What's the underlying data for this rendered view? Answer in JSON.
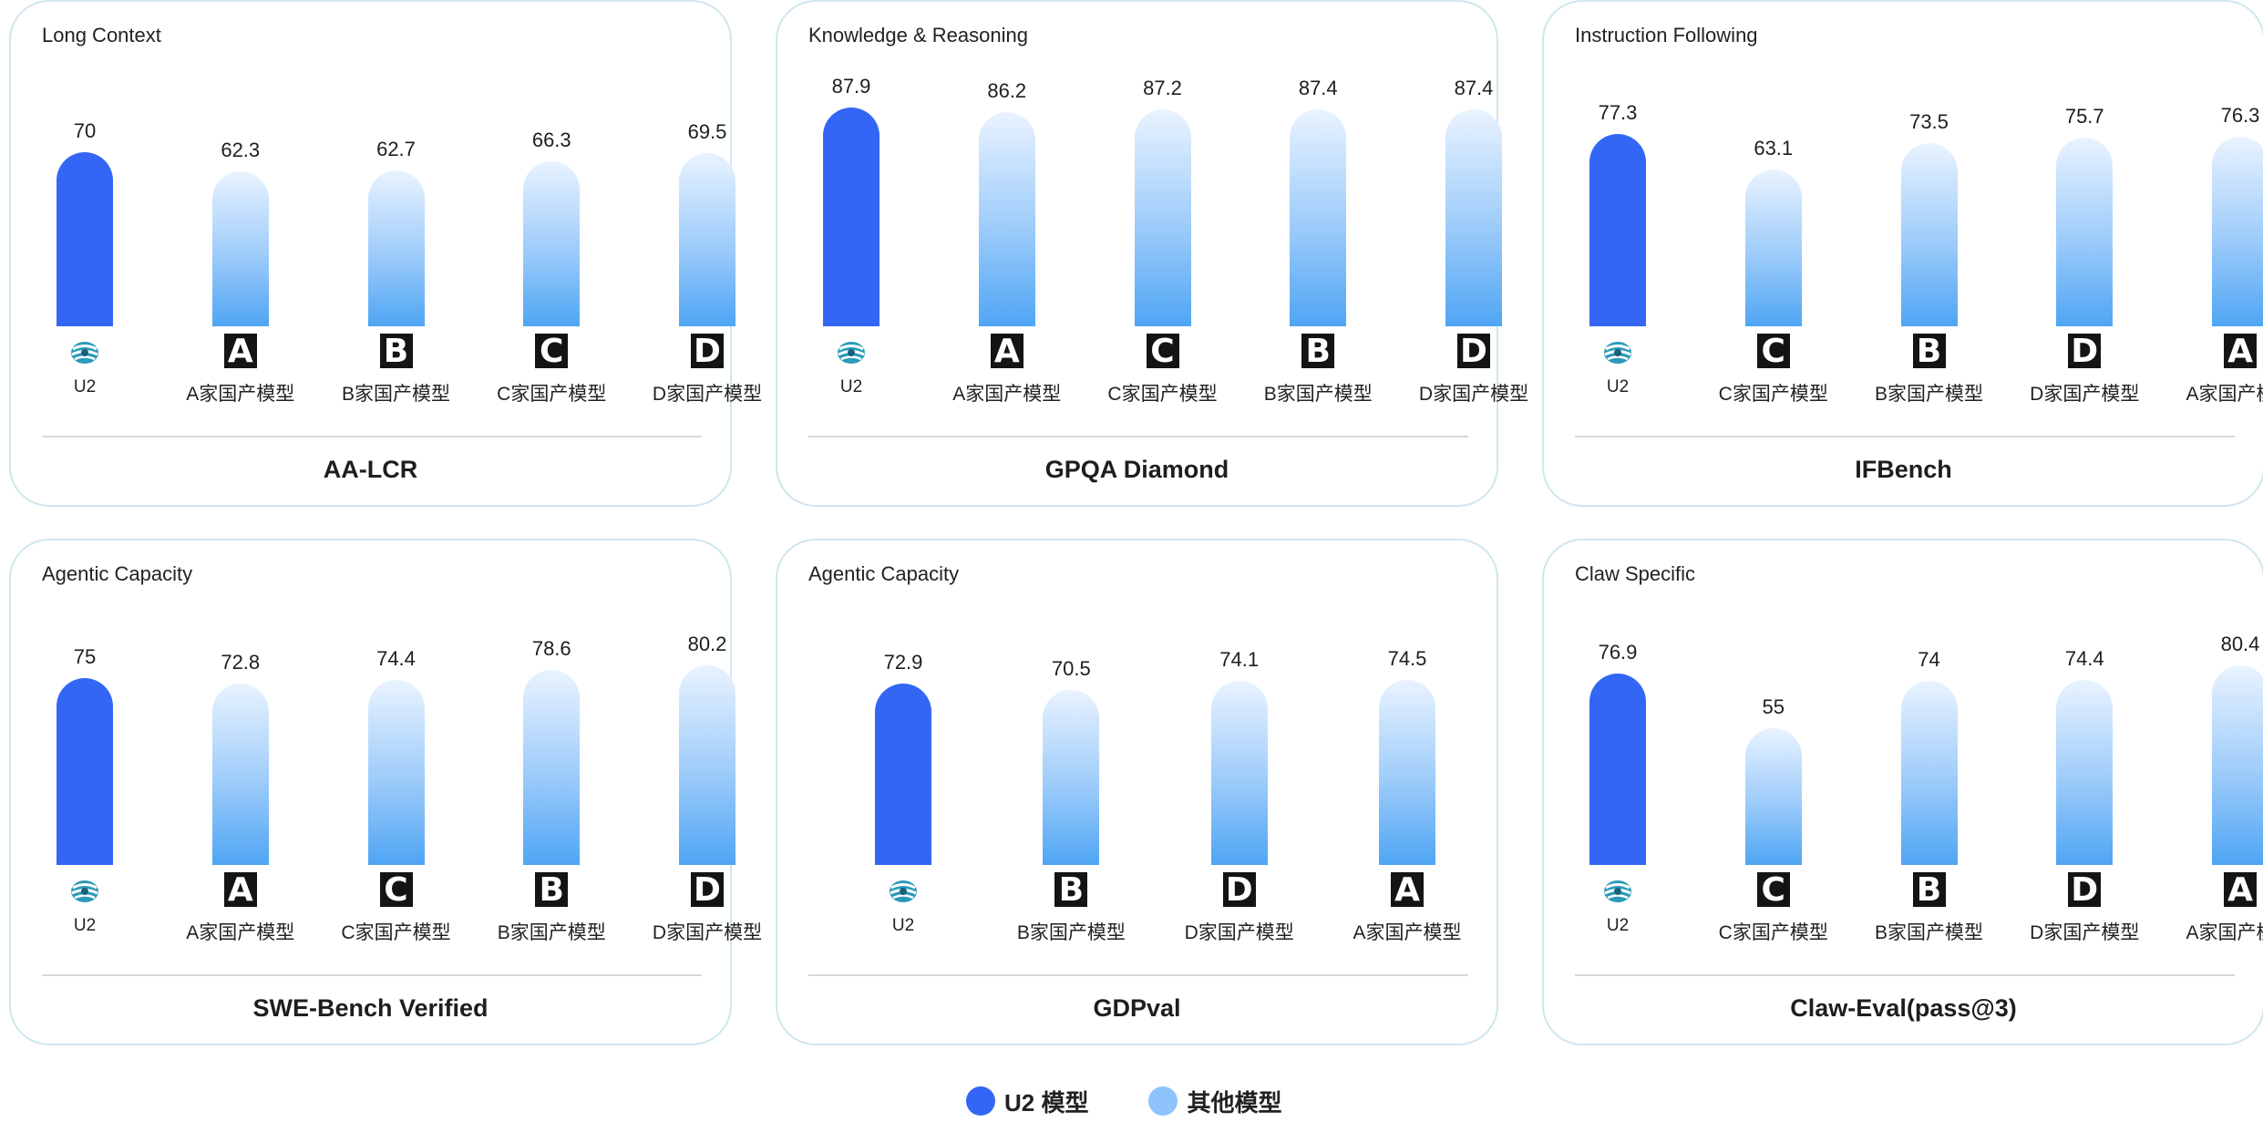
{
  "colors": {
    "u2_bar": "#3366f5",
    "other_bar_top": "#e9f3ff",
    "other_bar_bottom": "#4fa5f4",
    "panel_border": "#cfe6ee"
  },
  "legend": {
    "u2": {
      "label": "U2 模型",
      "color": "#3366f5"
    },
    "other": {
      "label": "其他模型",
      "color": "#8ec3fb"
    }
  },
  "chart_data": [
    {
      "type": "bar",
      "category": "Long Context",
      "title": "AA-LCR",
      "categories": [
        "U2",
        "A家国产模型",
        "B家国产模型",
        "C家国产模型",
        "D家国产模型"
      ],
      "logos": [
        "u2-icon",
        "A",
        "B",
        "C",
        "D"
      ],
      "values": [
        70,
        62.3,
        62.7,
        66.3,
        69.5
      ],
      "highlight_index": 0
    },
    {
      "type": "bar",
      "category": "Knowledge & Reasoning",
      "title": "GPQA Diamond",
      "categories": [
        "U2",
        "A家国产模型",
        "C家国产模型",
        "B家国产模型",
        "D家国产模型"
      ],
      "logos": [
        "u2-icon",
        "A",
        "C",
        "B",
        "D"
      ],
      "values": [
        87.9,
        86.2,
        87.2,
        87.4,
        87.4
      ],
      "highlight_index": 0
    },
    {
      "type": "bar",
      "category": "Instruction Following",
      "title": "IFBench",
      "categories": [
        "U2",
        "C家国产模型",
        "B家国产模型",
        "D家国产模型",
        "A家国产模型"
      ],
      "logos": [
        "u2-icon",
        "C",
        "B",
        "D",
        "A"
      ],
      "values": [
        77.3,
        63.1,
        73.5,
        75.7,
        76.3
      ],
      "highlight_index": 0
    },
    {
      "type": "bar",
      "category": "Agentic Capacity",
      "title": "SWE-Bench Verified",
      "categories": [
        "U2",
        "A家国产模型",
        "C家国产模型",
        "B家国产模型",
        "D家国产模型"
      ],
      "logos": [
        "u2-icon",
        "A",
        "C",
        "B",
        "D"
      ],
      "values": [
        75,
        72.8,
        74.4,
        78.6,
        80.2
      ],
      "highlight_index": 0
    },
    {
      "type": "bar",
      "category": "Agentic Capacity",
      "title": "GDPval",
      "categories": [
        "U2",
        "B家国产模型",
        "D家国产模型",
        "A家国产模型"
      ],
      "logos": [
        "u2-icon",
        "B",
        "D",
        "A"
      ],
      "values": [
        72.9,
        70.5,
        74.1,
        74.5
      ],
      "highlight_index": 0
    },
    {
      "type": "bar",
      "category": "Claw Specific",
      "title": "Claw-Eval(pass@3)",
      "categories": [
        "U2",
        "C家国产模型",
        "B家国产模型",
        "D家国产模型",
        "A家国产模型"
      ],
      "logos": [
        "u2-icon",
        "C",
        "B",
        "D",
        "A"
      ],
      "values": [
        76.9,
        55,
        74,
        74.4,
        80.4
      ],
      "highlight_index": 0
    }
  ]
}
